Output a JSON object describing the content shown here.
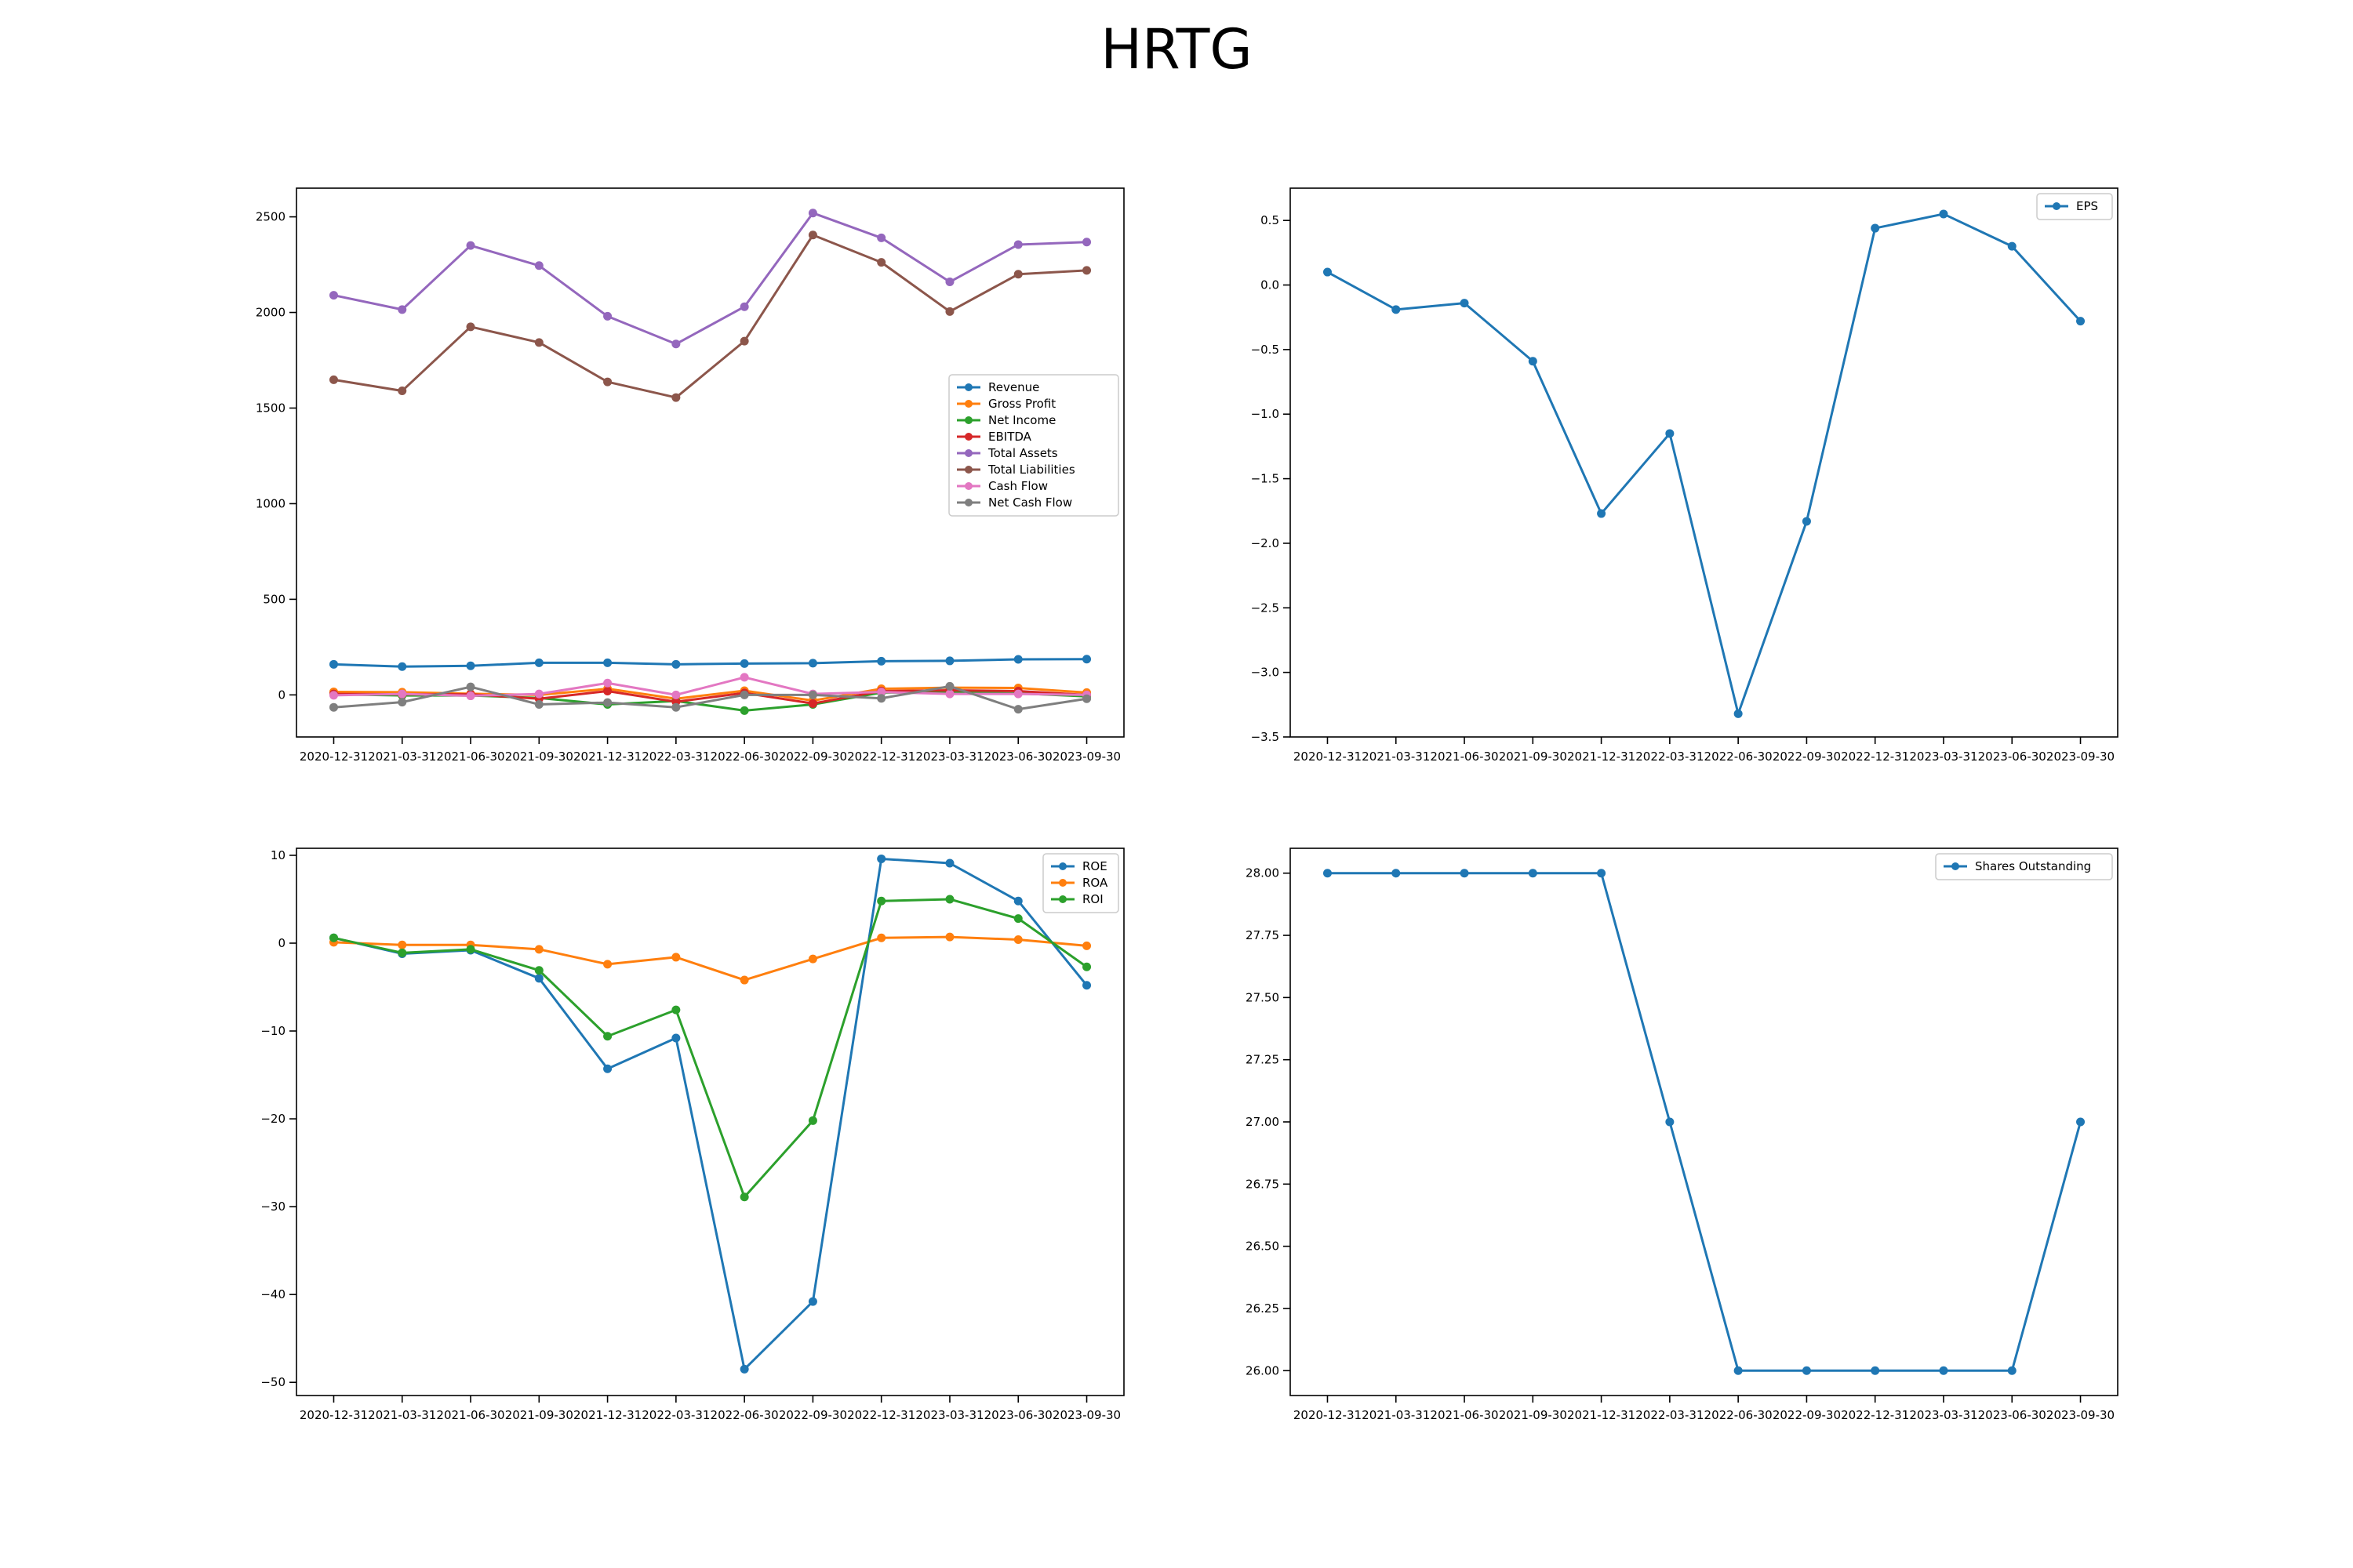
{
  "title": "HRTG",
  "chart_data": [
    {
      "type": "line",
      "categories": [
        "2020-12-31",
        "2021-03-31",
        "2021-06-30",
        "2021-09-30",
        "2021-12-31",
        "2022-03-31",
        "2022-06-30",
        "2022-09-30",
        "2022-12-31",
        "2023-03-31",
        "2023-06-30",
        "2023-09-30"
      ],
      "ylim": [
        -220,
        2650
      ],
      "yticks": [
        0,
        500,
        1000,
        1500,
        2000,
        2500
      ],
      "yticklabels": [
        "0",
        "500",
        "1000",
        "1500",
        "2000",
        "2500"
      ],
      "legend_position": "center-right",
      "series": [
        {
          "name": "Revenue",
          "color": "#1f77b4",
          "values": [
            160,
            148,
            152,
            168,
            168,
            160,
            164,
            166,
            176,
            178,
            186,
            187
          ]
        },
        {
          "name": "Gross Profit",
          "color": "#ff7f0e",
          "values": [
            16,
            14,
            6,
            0,
            32,
            -20,
            22,
            -30,
            32,
            38,
            36,
            12
          ]
        },
        {
          "name": "Net Income",
          "color": "#2ca02c",
          "values": [
            3,
            -3,
            -3,
            -16,
            -50,
            -32,
            -82,
            -50,
            12,
            14,
            8,
            -8
          ]
        },
        {
          "name": "EBITDA",
          "color": "#d62728",
          "values": [
            5,
            3,
            3,
            -20,
            20,
            -36,
            10,
            -45,
            20,
            24,
            20,
            0
          ]
        },
        {
          "name": "Total Assets",
          "color": "#9467bd",
          "values": [
            2090,
            2015,
            2350,
            2245,
            1980,
            1835,
            2030,
            2520,
            2390,
            2160,
            2355,
            2368
          ]
        },
        {
          "name": "Total Liabilities",
          "color": "#8c564b",
          "values": [
            1648,
            1590,
            1925,
            1843,
            1637,
            1555,
            1850,
            2405,
            2262,
            2005,
            2200,
            2220
          ]
        },
        {
          "name": "Cash Flow",
          "color": "#e377c2",
          "values": [
            -2,
            5,
            -5,
            5,
            62,
            0,
            92,
            5,
            15,
            5,
            5,
            0
          ]
        },
        {
          "name": "Net Cash Flow",
          "color": "#7f7f7f",
          "values": [
            -65,
            -38,
            42,
            -50,
            -40,
            -65,
            0,
            0,
            -18,
            45,
            -75,
            -20
          ]
        }
      ]
    },
    {
      "type": "line",
      "categories": [
        "2020-12-31",
        "2021-03-31",
        "2021-06-30",
        "2021-09-30",
        "2021-12-31",
        "2022-03-31",
        "2022-06-30",
        "2022-09-30",
        "2022-12-31",
        "2023-03-31",
        "2023-06-30",
        "2023-09-30"
      ],
      "ylim": [
        -3.5,
        0.75
      ],
      "yticks": [
        -3.5,
        -3.0,
        -2.5,
        -2.0,
        -1.5,
        -1.0,
        -0.5,
        0.0,
        0.5
      ],
      "yticklabels": [
        "−3.5",
        "−3.0",
        "−2.5",
        "−2.0",
        "−1.5",
        "−1.0",
        "−0.5",
        "0.0",
        "0.5"
      ],
      "legend_position": "top-right",
      "series": [
        {
          "name": "EPS",
          "color": "#1f77b4",
          "values": [
            0.1,
            -0.19,
            -0.14,
            -0.59,
            -1.77,
            -1.15,
            -3.32,
            -1.83,
            0.44,
            0.55,
            0.3,
            -0.28
          ]
        }
      ]
    },
    {
      "type": "line",
      "categories": [
        "2020-12-31",
        "2021-03-31",
        "2021-06-30",
        "2021-09-30",
        "2021-12-31",
        "2022-03-31",
        "2022-06-30",
        "2022-09-30",
        "2022-12-31",
        "2023-03-31",
        "2023-06-30",
        "2023-09-30"
      ],
      "ylim": [
        -51.5,
        10.8
      ],
      "yticks": [
        -50,
        -40,
        -30,
        -20,
        -10,
        0,
        10
      ],
      "yticklabels": [
        "−50",
        "−40",
        "−30",
        "−20",
        "−10",
        "0",
        "10"
      ],
      "legend_position": "top-right",
      "series": [
        {
          "name": "ROE",
          "color": "#1f77b4",
          "values": [
            0.6,
            -1.2,
            -0.8,
            -4.0,
            -14.3,
            -10.8,
            -48.5,
            -40.8,
            9.6,
            9.1,
            4.8,
            -4.8
          ]
        },
        {
          "name": "ROA",
          "color": "#ff7f0e",
          "values": [
            0.1,
            -0.2,
            -0.2,
            -0.7,
            -2.4,
            -1.6,
            -4.2,
            -1.8,
            0.6,
            0.7,
            0.4,
            -0.3
          ]
        },
        {
          "name": "ROI",
          "color": "#2ca02c",
          "values": [
            0.6,
            -1.1,
            -0.7,
            -3.1,
            -10.6,
            -7.6,
            -28.9,
            -20.2,
            4.8,
            5.0,
            2.8,
            -2.7
          ]
        }
      ]
    },
    {
      "type": "line",
      "categories": [
        "2020-12-31",
        "2021-03-31",
        "2021-06-30",
        "2021-09-30",
        "2021-12-31",
        "2022-03-31",
        "2022-06-30",
        "2022-09-30",
        "2022-12-31",
        "2023-03-31",
        "2023-06-30",
        "2023-09-30"
      ],
      "ylim": [
        25.9,
        28.1
      ],
      "yticks": [
        26.0,
        26.25,
        26.5,
        26.75,
        27.0,
        27.25,
        27.5,
        27.75,
        28.0
      ],
      "yticklabels": [
        "26.00",
        "26.25",
        "26.50",
        "26.75",
        "27.00",
        "27.25",
        "27.50",
        "27.75",
        "28.00"
      ],
      "legend_position": "top-right",
      "series": [
        {
          "name": "Shares Outstanding",
          "color": "#1f77b4",
          "values": [
            28,
            28,
            28,
            28,
            28,
            27,
            26,
            26,
            26,
            26,
            26,
            27
          ]
        }
      ]
    }
  ]
}
